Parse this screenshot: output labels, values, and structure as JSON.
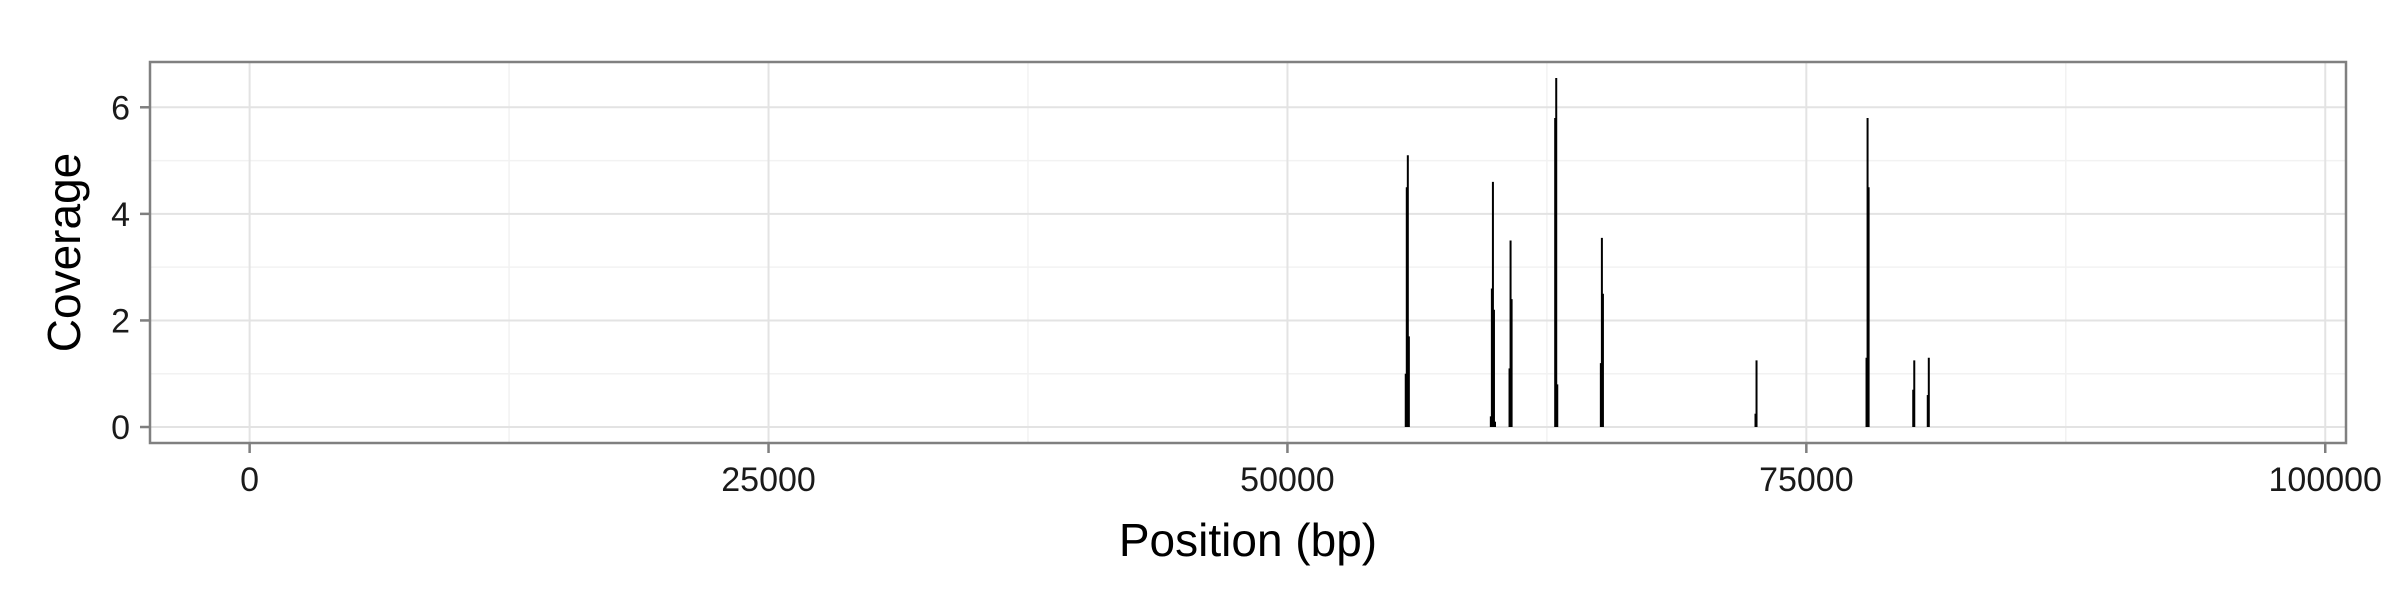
{
  "chart_data": {
    "type": "bar",
    "title": "",
    "xlabel": "Position (bp)",
    "ylabel": "Coverage",
    "xlim": [
      -4800,
      101000
    ],
    "ylim": [
      -0.3,
      6.85
    ],
    "x_ticks": [
      0,
      25000,
      50000,
      75000,
      100000
    ],
    "x_tick_labels": [
      "0",
      "25000",
      "50000",
      "75000",
      "100000"
    ],
    "y_ticks": [
      0,
      2,
      4,
      6
    ],
    "y_tick_labels": [
      "0",
      "2",
      "4",
      "6"
    ],
    "grid": true,
    "legend": "none",
    "series": [
      {
        "x": [
          55700,
          55750,
          55800,
          55850,
          59800,
          59850,
          59900,
          59950,
          60000,
          60700,
          60750,
          60800,
          62900,
          62950,
          63000,
          65100,
          65150,
          65200,
          72550,
          72600,
          77900,
          77950,
          78000,
          80150,
          80200,
          80850,
          80900
        ],
        "values": [
          1.0,
          4.5,
          5.1,
          1.7,
          0.2,
          2.6,
          4.6,
          2.2,
          0.1,
          1.1,
          3.5,
          2.4,
          5.8,
          6.55,
          0.8,
          1.2,
          3.55,
          2.5,
          0.25,
          1.25,
          1.3,
          5.8,
          4.5,
          0.7,
          1.25,
          0.6,
          1.3
        ]
      }
    ]
  },
  "colors": {
    "panel_border": "#808080",
    "grid_major": "#e3e3e3",
    "grid_minor": "#f2f2f2",
    "bar": "#000000",
    "tick": "#7f7f7f"
  }
}
